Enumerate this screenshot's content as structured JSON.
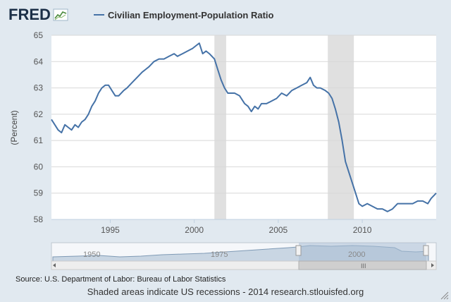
{
  "brand": {
    "logo_text": "FRED",
    "logo_icon": "chart-line-icon"
  },
  "colors": {
    "background": "#e1e9f0",
    "plot_background": "#ffffff",
    "series": "#4572a7",
    "recession_shade": "#e0e0e0",
    "navigator_fill": "#a8bed4"
  },
  "chart_data": {
    "type": "line",
    "title": "",
    "xlabel": "",
    "ylabel": "(Percent)",
    "xlim": [
      1991.5,
      2014.4
    ],
    "ylim": [
      58,
      65
    ],
    "x_ticks": [
      "1995",
      "2000",
      "2005",
      "2010"
    ],
    "y_ticks": [
      "58",
      "59",
      "60",
      "61",
      "62",
      "63",
      "64",
      "65"
    ],
    "legend_position": "top",
    "grid": true,
    "recession_periods": [
      [
        2001.2,
        2001.9
      ],
      [
        2007.95,
        2009.5
      ]
    ],
    "series": [
      {
        "name": "Civilian Employment-Population Ratio",
        "x": [
          1991.5,
          1991.7,
          1991.9,
          1992.1,
          1992.3,
          1992.5,
          1992.7,
          1992.9,
          1993.1,
          1993.3,
          1993.5,
          1993.7,
          1993.9,
          1994.1,
          1994.3,
          1994.5,
          1994.7,
          1994.9,
          1995.1,
          1995.3,
          1995.5,
          1995.8,
          1996.0,
          1996.3,
          1996.6,
          1996.9,
          1997.1,
          1997.3,
          1997.6,
          1997.9,
          1998.2,
          1998.5,
          1998.8,
          1999.0,
          1999.3,
          1999.6,
          1999.9,
          2000.1,
          2000.3,
          2000.5,
          2000.7,
          2000.9,
          2001.2,
          2001.4,
          2001.6,
          2001.8,
          2002.0,
          2002.2,
          2002.4,
          2002.7,
          2003.0,
          2003.2,
          2003.4,
          2003.6,
          2003.8,
          2004.0,
          2004.3,
          2004.6,
          2004.9,
          2005.2,
          2005.5,
          2005.8,
          2006.1,
          2006.4,
          2006.7,
          2006.9,
          2007.1,
          2007.3,
          2007.5,
          2007.8,
          2008.0,
          2008.2,
          2008.4,
          2008.6,
          2008.8,
          2009.0,
          2009.2,
          2009.4,
          2009.6,
          2009.8,
          2010.0,
          2010.3,
          2010.6,
          2010.9,
          2011.2,
          2011.5,
          2011.8,
          2012.1,
          2012.4,
          2012.7,
          2013.0,
          2013.3,
          2013.6,
          2013.9,
          2014.1,
          2014.4
        ],
        "values": [
          61.8,
          61.6,
          61.4,
          61.3,
          61.6,
          61.5,
          61.4,
          61.6,
          61.5,
          61.7,
          61.8,
          62.0,
          62.3,
          62.5,
          62.8,
          63.0,
          63.1,
          63.1,
          62.9,
          62.7,
          62.7,
          62.9,
          63.0,
          63.2,
          63.4,
          63.6,
          63.7,
          63.8,
          64.0,
          64.1,
          64.1,
          64.2,
          64.3,
          64.2,
          64.3,
          64.4,
          64.5,
          64.6,
          64.7,
          64.3,
          64.4,
          64.3,
          64.1,
          63.7,
          63.3,
          63.0,
          62.8,
          62.8,
          62.8,
          62.7,
          62.4,
          62.3,
          62.1,
          62.3,
          62.2,
          62.4,
          62.4,
          62.5,
          62.6,
          62.8,
          62.7,
          62.9,
          63.0,
          63.1,
          63.2,
          63.4,
          63.1,
          63.0,
          63.0,
          62.9,
          62.8,
          62.6,
          62.2,
          61.7,
          61.0,
          60.2,
          59.8,
          59.4,
          59.0,
          58.6,
          58.5,
          58.6,
          58.5,
          58.4,
          58.4,
          58.3,
          58.4,
          58.6,
          58.6,
          58.6,
          58.6,
          58.7,
          58.7,
          58.6,
          58.8,
          59.0
        ]
      }
    ],
    "navigator": {
      "labels": [
        "1950",
        "1975",
        "2000"
      ]
    }
  },
  "source": "Source: U.S. Department of Labor: Bureau of Labor Statistics",
  "footer": "Shaded areas indicate US recessions - 2014 research.stlouisfed.org"
}
